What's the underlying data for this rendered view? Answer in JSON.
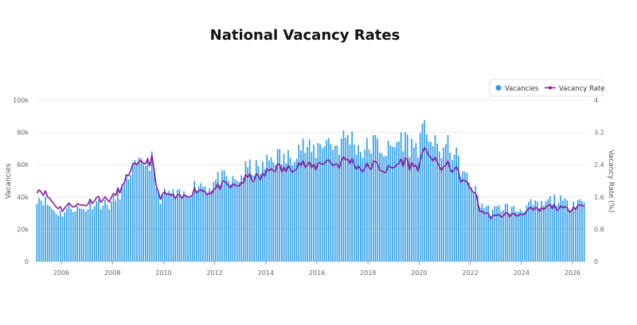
{
  "chart_data": {
    "type": "bar",
    "title": "National Vacancy Rates",
    "xlabel": "",
    "ylabel": "Vacancies",
    "y2label": "Vacancy Rate (%)",
    "ylim": [
      0,
      100000
    ],
    "y2lim": [
      0,
      4
    ],
    "y_ticks": [
      "0",
      "20k",
      "40k",
      "60k",
      "80k",
      "100k"
    ],
    "y2_ticks": [
      "0",
      "0.8",
      "1.6",
      "2.4",
      "3.2",
      "4"
    ],
    "x_ticks": [
      "2006",
      "2008",
      "2010",
      "2012",
      "2014",
      "2016",
      "2018",
      "2020",
      "2022",
      "2024",
      "2026"
    ],
    "x_range": [
      "2005-01",
      "2026-06"
    ],
    "legend_position": "top-right",
    "grid": true,
    "series": [
      {
        "name": "Vacancies",
        "type": "bar",
        "axis": "left",
        "color": "#2f9ee8",
        "anchors": [
          [
            "2005-01",
            40000
          ],
          [
            "2005-06",
            35000
          ],
          [
            "2006-01",
            30000
          ],
          [
            "2006-06",
            33000
          ],
          [
            "2007-01",
            34000
          ],
          [
            "2007-06",
            36000
          ],
          [
            "2008-01",
            37000
          ],
          [
            "2008-06",
            44000
          ],
          [
            "2008-09",
            60000
          ],
          [
            "2009-01",
            58000
          ],
          [
            "2009-07",
            62000
          ],
          [
            "2009-10",
            42000
          ],
          [
            "2010-06",
            40000
          ],
          [
            "2011-01",
            44000
          ],
          [
            "2011-06",
            47000
          ],
          [
            "2012-01",
            50000
          ],
          [
            "2012-06",
            49000
          ],
          [
            "2013-01",
            53000
          ],
          [
            "2013-06",
            57000
          ],
          [
            "2014-01",
            61000
          ],
          [
            "2014-06",
            64000
          ],
          [
            "2015-01",
            67000
          ],
          [
            "2015-06",
            70000
          ],
          [
            "2016-01",
            71000
          ],
          [
            "2016-06",
            73000
          ],
          [
            "2017-01",
            76000
          ],
          [
            "2017-06",
            73000
          ],
          [
            "2018-01",
            71000
          ],
          [
            "2018-06",
            70000
          ],
          [
            "2019-01",
            72000
          ],
          [
            "2019-06",
            74000
          ],
          [
            "2020-01",
            74000
          ],
          [
            "2020-04",
            80000
          ],
          [
            "2020-07",
            72000
          ],
          [
            "2021-01",
            71000
          ],
          [
            "2021-06",
            63000
          ],
          [
            "2021-10",
            55000
          ],
          [
            "2022-02",
            45000
          ],
          [
            "2022-05",
            35000
          ],
          [
            "2023-01",
            32000
          ],
          [
            "2023-06",
            33000
          ],
          [
            "2024-01",
            33000
          ],
          [
            "2024-06",
            34000
          ],
          [
            "2025-01",
            37000
          ],
          [
            "2025-06",
            37000
          ],
          [
            "2026-01",
            37000
          ],
          [
            "2026-06",
            36000
          ]
        ]
      },
      {
        "name": "Vacancy Rate",
        "type": "line",
        "axis": "right",
        "color": "#8b1a9c",
        "anchors": [
          [
            "2005-01",
            1.8
          ],
          [
            "2005-06",
            1.6
          ],
          [
            "2006-01",
            1.3
          ],
          [
            "2006-06",
            1.4
          ],
          [
            "2007-01",
            1.45
          ],
          [
            "2007-06",
            1.55
          ],
          [
            "2008-01",
            1.6
          ],
          [
            "2008-06",
            1.85
          ],
          [
            "2008-09",
            2.4
          ],
          [
            "2009-01",
            2.35
          ],
          [
            "2009-07",
            2.5
          ],
          [
            "2009-10",
            1.7
          ],
          [
            "2010-06",
            1.55
          ],
          [
            "2011-01",
            1.7
          ],
          [
            "2011-06",
            1.75
          ],
          [
            "2012-01",
            1.8
          ],
          [
            "2012-06",
            1.85
          ],
          [
            "2013-01",
            1.95
          ],
          [
            "2013-06",
            2.05
          ],
          [
            "2014-01",
            2.2
          ],
          [
            "2014-06",
            2.3
          ],
          [
            "2015-01",
            2.35
          ],
          [
            "2015-06",
            2.38
          ],
          [
            "2016-01",
            2.4
          ],
          [
            "2016-06",
            2.45
          ],
          [
            "2017-01",
            2.5
          ],
          [
            "2017-06",
            2.4
          ],
          [
            "2018-01",
            2.35
          ],
          [
            "2018-06",
            2.3
          ],
          [
            "2019-01",
            2.35
          ],
          [
            "2019-06",
            2.45
          ],
          [
            "2020-01",
            2.4
          ],
          [
            "2020-04",
            2.75
          ],
          [
            "2020-07",
            2.5
          ],
          [
            "2021-01",
            2.35
          ],
          [
            "2021-06",
            2.2
          ],
          [
            "2021-10",
            2.0
          ],
          [
            "2022-02",
            1.75
          ],
          [
            "2022-05",
            1.25
          ],
          [
            "2023-01",
            1.1
          ],
          [
            "2023-06",
            1.15
          ],
          [
            "2024-01",
            1.2
          ],
          [
            "2024-06",
            1.25
          ],
          [
            "2025-01",
            1.35
          ],
          [
            "2025-06",
            1.3
          ],
          [
            "2026-01",
            1.35
          ],
          [
            "2026-06",
            1.35
          ]
        ]
      }
    ]
  }
}
